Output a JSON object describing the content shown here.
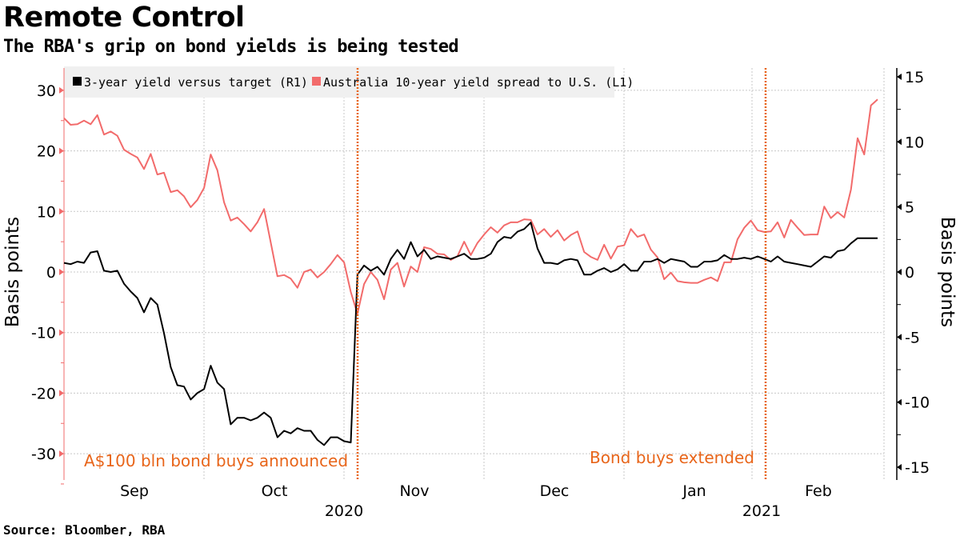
{
  "title": "Remote Control",
  "subtitle": "The RBA's grip on bond yields is being tested",
  "source": "Source: Bloomber, RBA",
  "colors": {
    "spread": "#f26b6b",
    "three_year": "#000000",
    "annotation": "#e8651a",
    "legend_bg": "#f0f0f0"
  },
  "chart_data": {
    "type": "line",
    "grid": true,
    "legend": "top-left",
    "y_left": {
      "label": "Basis points",
      "range": [
        -33,
        34
      ],
      "ticks": [
        "30",
        "20",
        "10",
        "0",
        "-10",
        "-20",
        "-30"
      ]
    },
    "y_right": {
      "label": "Basis points",
      "range": [
        -15.7,
        15.8
      ],
      "ticks": [
        "15",
        "10",
        "5",
        "0",
        "-5",
        "-10",
        "-15"
      ]
    },
    "x_tick_labels": [
      "Sep",
      "Oct",
      "Nov",
      "Dec",
      "Jan",
      "Feb"
    ],
    "x_year_labels": [
      "2020",
      "2021"
    ],
    "annotations": [
      {
        "date": "2020-11-03",
        "label": "A$100 bln bond buys announced"
      },
      {
        "date": "2021-02-02",
        "label": "Bond buys extended"
      }
    ],
    "x": [
      "2020-08-31",
      "2020-09-01",
      "2020-09-02",
      "2020-09-03",
      "2020-09-04",
      "2020-09-07",
      "2020-09-08",
      "2020-09-09",
      "2020-09-10",
      "2020-09-11",
      "2020-09-14",
      "2020-09-15",
      "2020-09-16",
      "2020-09-17",
      "2020-09-18",
      "2020-09-21",
      "2020-09-22",
      "2020-09-23",
      "2020-09-24",
      "2020-09-25",
      "2020-09-28",
      "2020-09-29",
      "2020-09-30",
      "2020-10-01",
      "2020-10-02",
      "2020-10-06",
      "2020-10-07",
      "2020-10-08",
      "2020-10-09",
      "2020-10-12",
      "2020-10-13",
      "2020-10-14",
      "2020-10-15",
      "2020-10-16",
      "2020-10-19",
      "2020-10-20",
      "2020-10-21",
      "2020-10-22",
      "2020-10-23",
      "2020-10-26",
      "2020-10-27",
      "2020-10-28",
      "2020-10-29",
      "2020-10-30",
      "2020-11-02",
      "2020-11-03",
      "2020-11-04",
      "2020-11-05",
      "2020-11-06",
      "2020-11-09",
      "2020-11-10",
      "2020-11-11",
      "2020-11-12",
      "2020-11-13",
      "2020-11-16",
      "2020-11-17",
      "2020-11-18",
      "2020-11-19",
      "2020-11-20",
      "2020-11-23",
      "2020-11-24",
      "2020-11-25",
      "2020-11-26",
      "2020-11-27",
      "2020-11-30",
      "2020-12-01",
      "2020-12-02",
      "2020-12-03",
      "2020-12-04",
      "2020-12-07",
      "2020-12-08",
      "2020-12-09",
      "2020-12-10",
      "2020-12-11",
      "2020-12-14",
      "2020-12-15",
      "2020-12-16",
      "2020-12-17",
      "2020-12-18",
      "2020-12-21",
      "2020-12-22",
      "2020-12-23",
      "2020-12-24",
      "2020-12-29",
      "2020-12-30",
      "2020-12-31",
      "2021-01-04",
      "2021-01-05",
      "2021-01-06",
      "2021-01-07",
      "2021-01-08",
      "2021-01-11",
      "2021-01-12",
      "2021-01-13",
      "2021-01-14",
      "2021-01-15",
      "2021-01-18",
      "2021-01-19",
      "2021-01-20",
      "2021-01-21",
      "2021-01-22",
      "2021-01-25",
      "2021-01-27",
      "2021-01-28",
      "2021-01-29",
      "2021-02-01",
      "2021-02-02",
      "2021-02-03",
      "2021-02-04",
      "2021-02-05",
      "2021-02-08",
      "2021-02-09",
      "2021-02-10",
      "2021-02-11",
      "2021-02-12",
      "2021-02-15",
      "2021-02-16",
      "2021-02-17",
      "2021-02-18",
      "2021-02-19",
      "2021-02-22",
      "2021-02-23",
      "2021-02-24"
    ],
    "series": [
      {
        "name": "3-year yield versus target (R1)",
        "axis": "right",
        "values": [
          0.7,
          0.6,
          0.8,
          0.7,
          1.5,
          1.6,
          0.1,
          0,
          0.1,
          -0.9,
          -1.5,
          -2.0,
          -3.1,
          -2.0,
          -2.5,
          -4.7,
          -7.3,
          -8.7,
          -8.8,
          -9.8,
          -9.3,
          -9.0,
          -7.2,
          -8.5,
          -9.0,
          -11.7,
          -11.2,
          -11.2,
          -11.4,
          -11.2,
          -10.8,
          -11.2,
          -12.7,
          -12.2,
          -12.4,
          -12.0,
          -12.2,
          -12.2,
          -12.9,
          -13.3,
          -12.7,
          -12.7,
          -13.0,
          -13.1,
          -0.2,
          0.5,
          0.1,
          0.4,
          -0.2,
          1.0,
          1.7,
          1.0,
          2.3,
          1.2,
          1.7,
          1.0,
          1.2,
          1.1,
          1.0,
          1.2,
          1.4,
          1.0,
          1.0,
          1.1,
          1.4,
          2.3,
          2.7,
          2.6,
          3.1,
          3.3,
          3.8,
          1.8,
          0.7,
          0.7,
          0.6,
          0.9,
          1.0,
          0.9,
          -0.2,
          -0.2,
          0.1,
          0.3,
          0,
          0.2,
          0.6,
          0.1,
          0.1,
          0.8,
          0.8,
          1.0,
          0.7,
          1.0,
          0.9,
          0.8,
          0.4,
          0.4,
          0.8,
          0.8,
          0.9,
          1.3,
          1.0,
          1.0,
          1.1,
          1.0,
          1.2,
          1.0,
          0.8,
          1.2,
          0.8,
          0.7,
          0.6,
          0.5,
          0.4,
          0.8,
          1.2,
          1.1,
          1.6,
          1.7,
          2.2,
          2.6,
          2.6,
          2.6,
          2.6
        ]
      },
      {
        "name": "Australia 10-year yield spread to U.S. (L1)",
        "axis": "left",
        "values": [
          25.4,
          24.3,
          24.4,
          25.0,
          24.4,
          25.9,
          22.7,
          23.2,
          22.5,
          20.2,
          19.5,
          18.9,
          17.0,
          19.5,
          16.1,
          16.4,
          13.2,
          13.5,
          12.5,
          10.7,
          11.9,
          13.9,
          19.4,
          16.8,
          11.5,
          8.5,
          9.0,
          7.9,
          6.7,
          8.2,
          10.4,
          4.9,
          -0.7,
          -0.5,
          -1.1,
          -2.6,
          0,
          0.4,
          -0.9,
          0,
          1.3,
          2.8,
          1.6,
          -3.3,
          -6.9,
          -2.0,
          0,
          -1.3,
          -4.5,
          0.4,
          1.5,
          -2.4,
          0.9,
          0,
          4.1,
          3.8,
          3.0,
          2.9,
          2.0,
          2.6,
          5.0,
          2.8,
          4.8,
          6.2,
          7.4,
          6.5,
          7.7,
          8.2,
          8.2,
          8.7,
          8.6,
          6.2,
          7.1,
          5.8,
          6.9,
          5.2,
          6.1,
          6.7,
          3.3,
          2.5,
          2.0,
          4.5,
          2.2,
          4.2,
          4.4,
          7.1,
          5.8,
          6.2,
          3.7,
          2.4,
          -1.2,
          -0.1,
          -1.5,
          -1.7,
          -1.8,
          -1.8,
          -1.3,
          -0.9,
          -1.5,
          1.6,
          1.6,
          5.4,
          7.3,
          8.5,
          6.9,
          6.6,
          6.7,
          8.2,
          5.7,
          8.6,
          7.3,
          6.1,
          6.2,
          6.2,
          10.8,
          8.9,
          9.9,
          9.0,
          13.6,
          22.1,
          19.4,
          27.5,
          28.5
        ]
      }
    ]
  }
}
